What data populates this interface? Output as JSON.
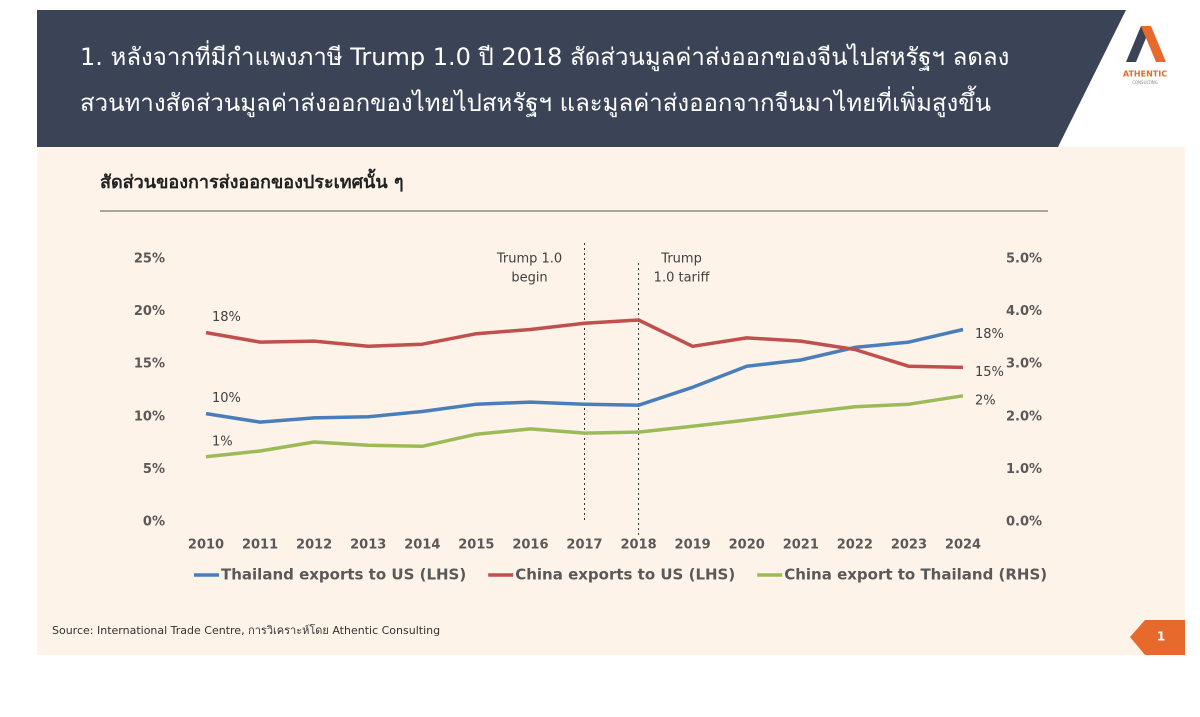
{
  "header": {
    "title_lines": [
      "1. หลังจากที่มีกำแพงภาษี Trump 1.0 ปี 2018 สัดส่วนมูลค่าส่งออกของจีนไปสหรัฐฯ ลดลง",
      "สวนทางสัดส่วนมูลค่าส่งออกของไทยไปสหรัฐฯ และมูลค่าส่งออกจากจีนมาไทยที่เพิ่มสูงขึ้น"
    ]
  },
  "logo": {
    "name": "ATHENTIC",
    "tagline": "CONSULTING"
  },
  "chart_data": {
    "type": "line",
    "title": "สัดส่วนของการส่งออกของประเทศนั้น ๆ",
    "categories": [
      "2010",
      "2011",
      "2012",
      "2013",
      "2014",
      "2015",
      "2016",
      "2017",
      "2018",
      "2019",
      "2020",
      "2021",
      "2022",
      "2023",
      "2024"
    ],
    "series": [
      {
        "name": "Thailand exports to US (LHS)",
        "color": "#4a7ebb",
        "axis": "y",
        "values": [
          10.3,
          9.5,
          9.9,
          10.0,
          10.5,
          11.2,
          11.4,
          11.2,
          11.1,
          12.8,
          14.8,
          15.4,
          16.6,
          17.1,
          18.3
        ],
        "value_labels": [
          "10%",
          null,
          null,
          null,
          null,
          null,
          null,
          null,
          null,
          null,
          null,
          null,
          null,
          null,
          "18%"
        ]
      },
      {
        "name": "China exports to US (LHS)",
        "color": "#c0504d",
        "axis": "y",
        "values": [
          18.0,
          17.1,
          17.2,
          16.7,
          16.9,
          17.9,
          18.3,
          18.9,
          19.2,
          16.7,
          17.5,
          17.2,
          16.4,
          14.8,
          14.7
        ],
        "value_labels": [
          "18%",
          null,
          null,
          null,
          null,
          null,
          null,
          null,
          null,
          null,
          null,
          null,
          null,
          null,
          "15%"
        ]
      },
      {
        "name": "China export to Thailand (RHS)",
        "color": "#9bbb59",
        "axis": "y2",
        "values": [
          1.24,
          1.35,
          1.52,
          1.46,
          1.44,
          1.67,
          1.77,
          1.69,
          1.71,
          1.82,
          1.94,
          2.07,
          2.19,
          2.24,
          2.4
        ],
        "value_labels": [
          "1%",
          null,
          null,
          null,
          null,
          null,
          null,
          null,
          null,
          null,
          null,
          null,
          null,
          null,
          "2%"
        ]
      }
    ],
    "ylim": [
      0,
      25
    ],
    "yticks": [
      {
        "value": 0,
        "label": "0%"
      },
      {
        "value": 5,
        "label": "5%"
      },
      {
        "value": 10,
        "label": "10%"
      },
      {
        "value": 15,
        "label": "15%"
      },
      {
        "value": 20,
        "label": "20%"
      },
      {
        "value": 25,
        "label": "25%"
      }
    ],
    "y2lim": [
      0,
      5
    ],
    "y2ticks": [
      {
        "value": 0,
        "label": "0.0%"
      },
      {
        "value": 1,
        "label": "1.0%"
      },
      {
        "value": 2,
        "label": "2.0%"
      },
      {
        "value": 3,
        "label": "3.0%"
      },
      {
        "value": 4,
        "label": "4.0%"
      },
      {
        "value": 5,
        "label": "5.0%"
      }
    ],
    "annotations": [
      {
        "at": "2017",
        "lines": [
          "Trump 1.0",
          "begin"
        ]
      },
      {
        "at": "2018",
        "lines": [
          "Trump",
          "1.0 tariff"
        ]
      }
    ],
    "legend": "bottom"
  },
  "source": "Source: International Trade Centre, การวิเคราะห์โดย Athentic Consulting",
  "page_number": 1
}
